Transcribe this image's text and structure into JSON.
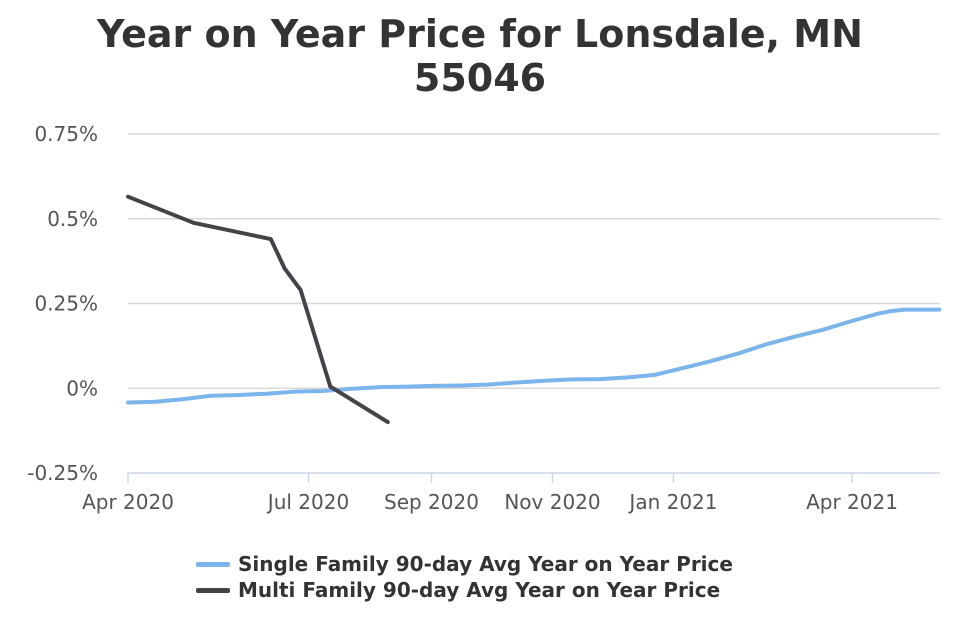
{
  "chart_data": {
    "type": "line",
    "title_line1": "Year on Year Price for Lonsdale, MN",
    "title_line2": "55046",
    "xlabel": "",
    "ylabel": "",
    "xlim": [
      "2020-04-01",
      "2021-05-20"
    ],
    "ylim": [
      -0.25,
      0.75
    ],
    "x_ticks": [
      {
        "date": "2020-04-01",
        "label": "Apr 2020"
      },
      {
        "date": "2020-07-01",
        "label": "Jul 2020"
      },
      {
        "date": "2020-09-01",
        "label": "Sep 2020"
      },
      {
        "date": "2020-11-01",
        "label": "Nov 2020"
      },
      {
        "date": "2021-01-01",
        "label": "Jan 2021"
      },
      {
        "date": "2021-04-01",
        "label": "Apr 2021"
      }
    ],
    "y_ticks": [
      {
        "value": 0.75,
        "label": "0.75%"
      },
      {
        "value": 0.5,
        "label": "0.5%"
      },
      {
        "value": 0.25,
        "label": "0.25%"
      },
      {
        "value": 0,
        "label": "0%"
      },
      {
        "value": -0.25,
        "label": "-0.25%"
      }
    ],
    "grid": "horizontal",
    "legend_position": "bottom",
    "series": [
      {
        "name": "Single Family 90-day Avg Year on Year Price",
        "color": "#7cb5ec",
        "points": [
          [
            "2020-04-01",
            -0.042
          ],
          [
            "2020-04-15",
            -0.04
          ],
          [
            "2020-04-29",
            -0.032
          ],
          [
            "2020-05-13",
            -0.022
          ],
          [
            "2020-05-27",
            -0.02
          ],
          [
            "2020-06-10",
            -0.016
          ],
          [
            "2020-06-24",
            -0.01
          ],
          [
            "2020-07-08",
            -0.008
          ],
          [
            "2020-07-22",
            -0.002
          ],
          [
            "2020-08-05",
            0.003
          ],
          [
            "2020-08-19",
            0.005
          ],
          [
            "2020-09-02",
            0.007
          ],
          [
            "2020-09-16",
            0.008
          ],
          [
            "2020-09-30",
            0.011
          ],
          [
            "2020-10-14",
            0.017
          ],
          [
            "2020-10-28",
            0.022
          ],
          [
            "2020-11-11",
            0.026
          ],
          [
            "2020-11-25",
            0.027
          ],
          [
            "2020-12-09",
            0.032
          ],
          [
            "2020-12-23",
            0.04
          ],
          [
            "2021-01-06",
            0.06
          ],
          [
            "2021-01-20",
            0.08
          ],
          [
            "2021-02-03",
            0.103
          ],
          [
            "2021-02-17",
            0.13
          ],
          [
            "2021-03-03",
            0.152
          ],
          [
            "2021-03-17",
            0.172
          ],
          [
            "2021-03-31",
            0.197
          ],
          [
            "2021-04-14",
            0.22
          ],
          [
            "2021-04-21",
            0.228
          ],
          [
            "2021-04-28",
            0.232
          ],
          [
            "2021-05-15",
            0.232
          ]
        ]
      },
      {
        "name": "Multi Family 90-day Avg Year on Year Price",
        "color": "#434348",
        "points": [
          [
            "2020-04-01",
            0.565
          ],
          [
            "2020-05-04",
            0.488
          ],
          [
            "2020-06-12",
            0.44
          ],
          [
            "2020-06-19",
            0.353
          ],
          [
            "2020-06-27",
            0.29
          ],
          [
            "2020-07-12",
            0.005
          ],
          [
            "2020-08-10",
            -0.1
          ]
        ]
      }
    ]
  }
}
